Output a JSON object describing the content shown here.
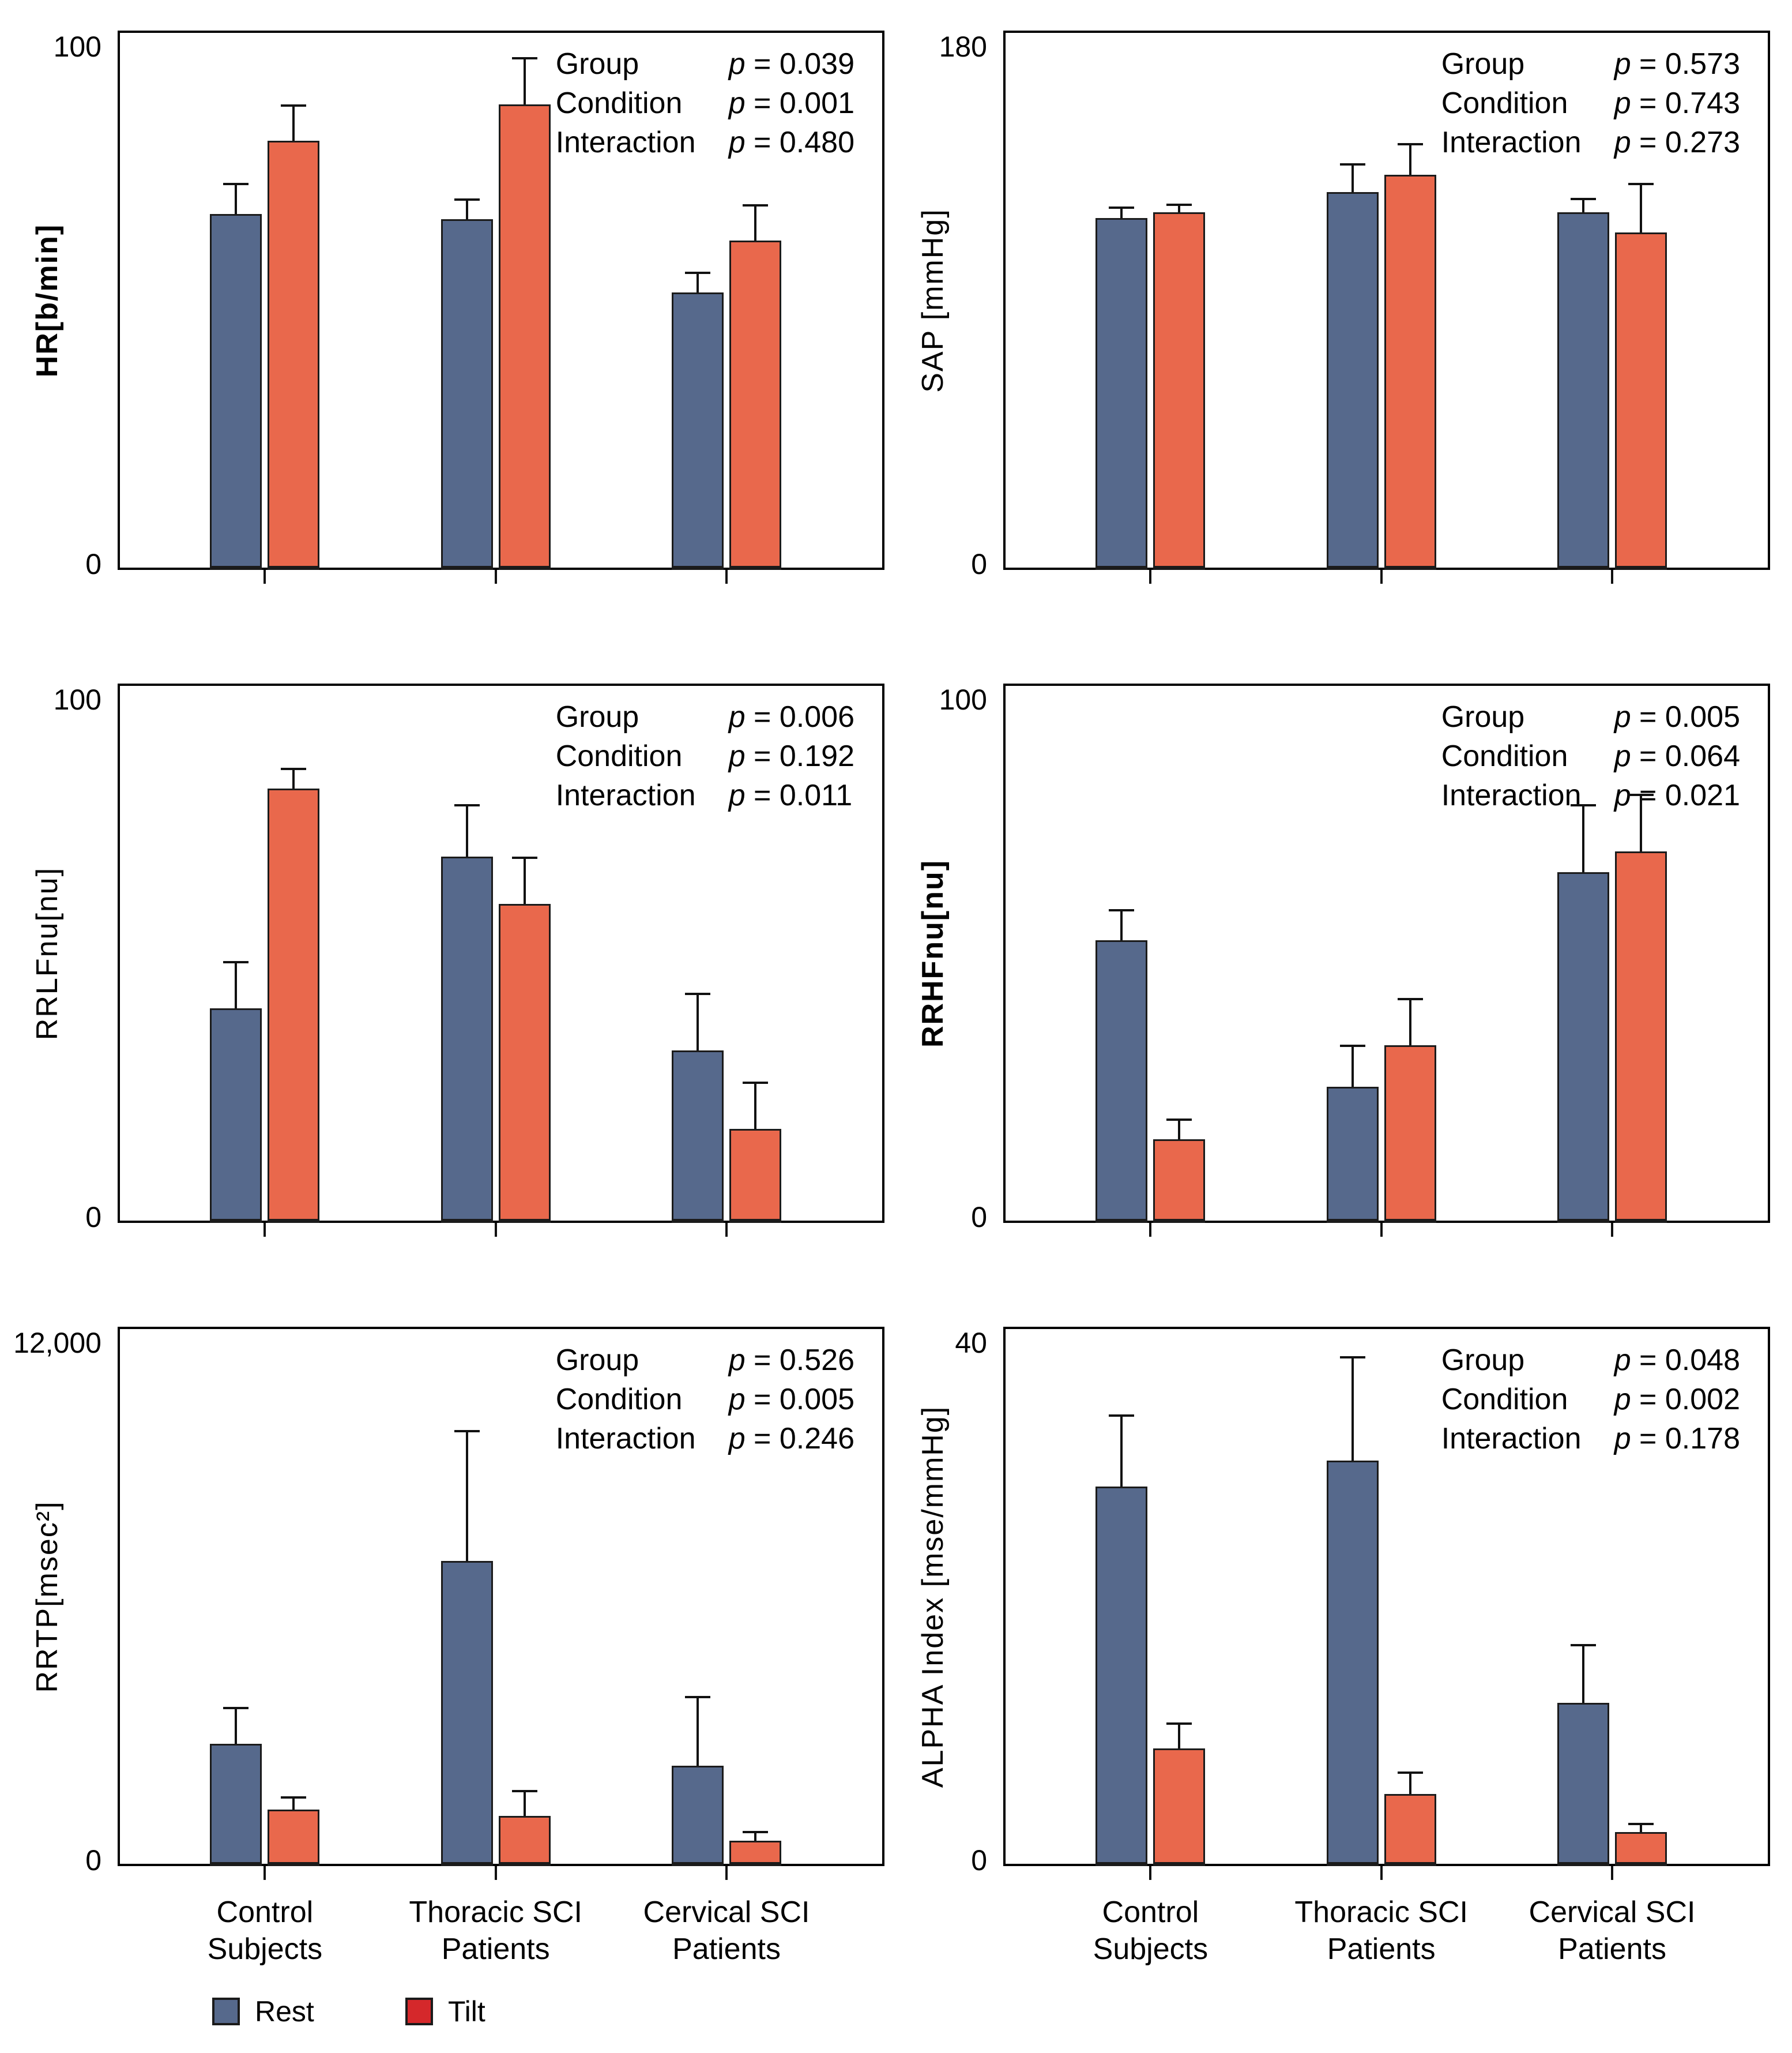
{
  "figure": {
    "stats_labels": {
      "group": "Group",
      "condition": "Condition",
      "interaction": "Interaction",
      "p": "p"
    },
    "categories": [
      {
        "line1": "Control",
        "line2": "Subjects"
      },
      {
        "line1": "Thoracic SCI",
        "line2": "Patients"
      },
      {
        "line1": "Cervical SCI",
        "line2": "Patients"
      }
    ],
    "legend": [
      {
        "label": "Rest",
        "color": "#56698C"
      },
      {
        "label": "Tilt",
        "color": "#D5282B"
      }
    ]
  },
  "colors": {
    "rest_bar": "#56698C",
    "tilt_bar": "#E9684C",
    "bar_border": "#1B1B1B",
    "axis": "#000000",
    "legend_tilt": "#D5282B",
    "background": "#FFFFFF",
    "text": "#000000"
  },
  "chart_data": [
    {
      "type": "bar",
      "panel": "top-left",
      "ylabel": "HR[b/min]",
      "ylabel_bold": true,
      "ylim": [
        0,
        100
      ],
      "ymax_label": "100",
      "ymin_label": "0",
      "grid": false,
      "categories": [
        "Control Subjects",
        "Thoracic SCI Patients",
        "Cervical SCI Patients"
      ],
      "series": [
        {
          "name": "Rest",
          "values": [
            68,
            67,
            53
          ],
          "errors": [
            6,
            4,
            4
          ]
        },
        {
          "name": "Tilt",
          "values": [
            82,
            89,
            63
          ],
          "errors": [
            7,
            9,
            7
          ]
        }
      ],
      "stats": {
        "group_p": "0.039",
        "condition_p": "0.001",
        "interaction_p": "0.480"
      }
    },
    {
      "type": "bar",
      "panel": "top-right",
      "ylabel": "SAP [mmHg]",
      "ylabel_bold": false,
      "ylim": [
        0,
        180
      ],
      "ymax_label": "180",
      "ymin_label": "0",
      "grid": false,
      "categories": [
        "Control Subjects",
        "Thoracic SCI Patients",
        "Cervical SCI Patients"
      ],
      "series": [
        {
          "name": "Rest",
          "values": [
            121,
            130,
            123
          ],
          "errors": [
            4,
            10,
            5
          ]
        },
        {
          "name": "Tilt",
          "values": [
            123,
            136,
            116
          ],
          "errors": [
            3,
            11,
            17
          ]
        }
      ],
      "stats": {
        "group_p": "0.573",
        "condition_p": "0.743",
        "interaction_p": "0.273"
      }
    },
    {
      "type": "bar",
      "panel": "middle-left",
      "ylabel": "RRLFnu[nu]",
      "ylabel_bold": false,
      "ylim": [
        0,
        100
      ],
      "ymax_label": "100",
      "ymin_label": "0",
      "grid": false,
      "categories": [
        "Control Subjects",
        "Thoracic SCI Patients",
        "Cervical SCI Patients"
      ],
      "series": [
        {
          "name": "Rest",
          "values": [
            41,
            70,
            33
          ],
          "errors": [
            9,
            10,
            11
          ]
        },
        {
          "name": "Tilt",
          "values": [
            83,
            61,
            18
          ],
          "errors": [
            4,
            9,
            9
          ]
        }
      ],
      "stats": {
        "group_p": "0.006",
        "condition_p": "0.192",
        "interaction_p": "0.011"
      }
    },
    {
      "type": "bar",
      "panel": "middle-right",
      "ylabel": "RRHFnu[nu]",
      "ylabel_bold": true,
      "ylim": [
        0,
        100
      ],
      "ymax_label": "100",
      "ymin_label": "0",
      "grid": false,
      "categories": [
        "Control Subjects",
        "Thoracic SCI Patients",
        "Cervical SCI Patients"
      ],
      "series": [
        {
          "name": "Rest",
          "values": [
            54,
            26,
            67
          ],
          "errors": [
            6,
            8,
            13
          ]
        },
        {
          "name": "Tilt",
          "values": [
            16,
            34,
            71
          ],
          "errors": [
            4,
            9,
            11
          ]
        }
      ],
      "stats": {
        "group_p": "0.005",
        "condition_p": "0.064",
        "interaction_p": "0.021"
      }
    },
    {
      "type": "bar",
      "panel": "bottom-left",
      "ylabel": "RRTP[msec²]",
      "ylabel_bold": false,
      "ylim": [
        0,
        12000
      ],
      "ymax_label": "12,000",
      "ymin_label": "0",
      "grid": false,
      "categories": [
        "Control Subjects",
        "Thoracic SCI Patients",
        "Cervical SCI Patients"
      ],
      "series": [
        {
          "name": "Rest",
          "values": [
            2800,
            7000,
            2300
          ],
          "errors": [
            850,
            3000,
            1600
          ]
        },
        {
          "name": "Tilt",
          "values": [
            1300,
            1150,
            580
          ],
          "errors": [
            300,
            600,
            230
          ]
        }
      ],
      "stats": {
        "group_p": "0.526",
        "condition_p": "0.005",
        "interaction_p": "0.246"
      }
    },
    {
      "type": "bar",
      "panel": "bottom-right",
      "ylabel": "ALPHA Index [mse/mmHg]",
      "ylabel_bold": false,
      "ylim": [
        0,
        40
      ],
      "ymax_label": "40",
      "ymin_label": "0",
      "grid": false,
      "categories": [
        "Control Subjects",
        "Thoracic SCI Patients",
        "Cervical SCI Patients"
      ],
      "series": [
        {
          "name": "Rest",
          "values": [
            29,
            31,
            12.5
          ],
          "errors": [
            5.5,
            8,
            4.5
          ]
        },
        {
          "name": "Tilt",
          "values": [
            9,
            5.5,
            2.6
          ],
          "errors": [
            2,
            1.7,
            0.7
          ]
        }
      ],
      "stats": {
        "group_p": "0.048",
        "condition_p": "0.002",
        "interaction_p": "0.178"
      }
    }
  ]
}
